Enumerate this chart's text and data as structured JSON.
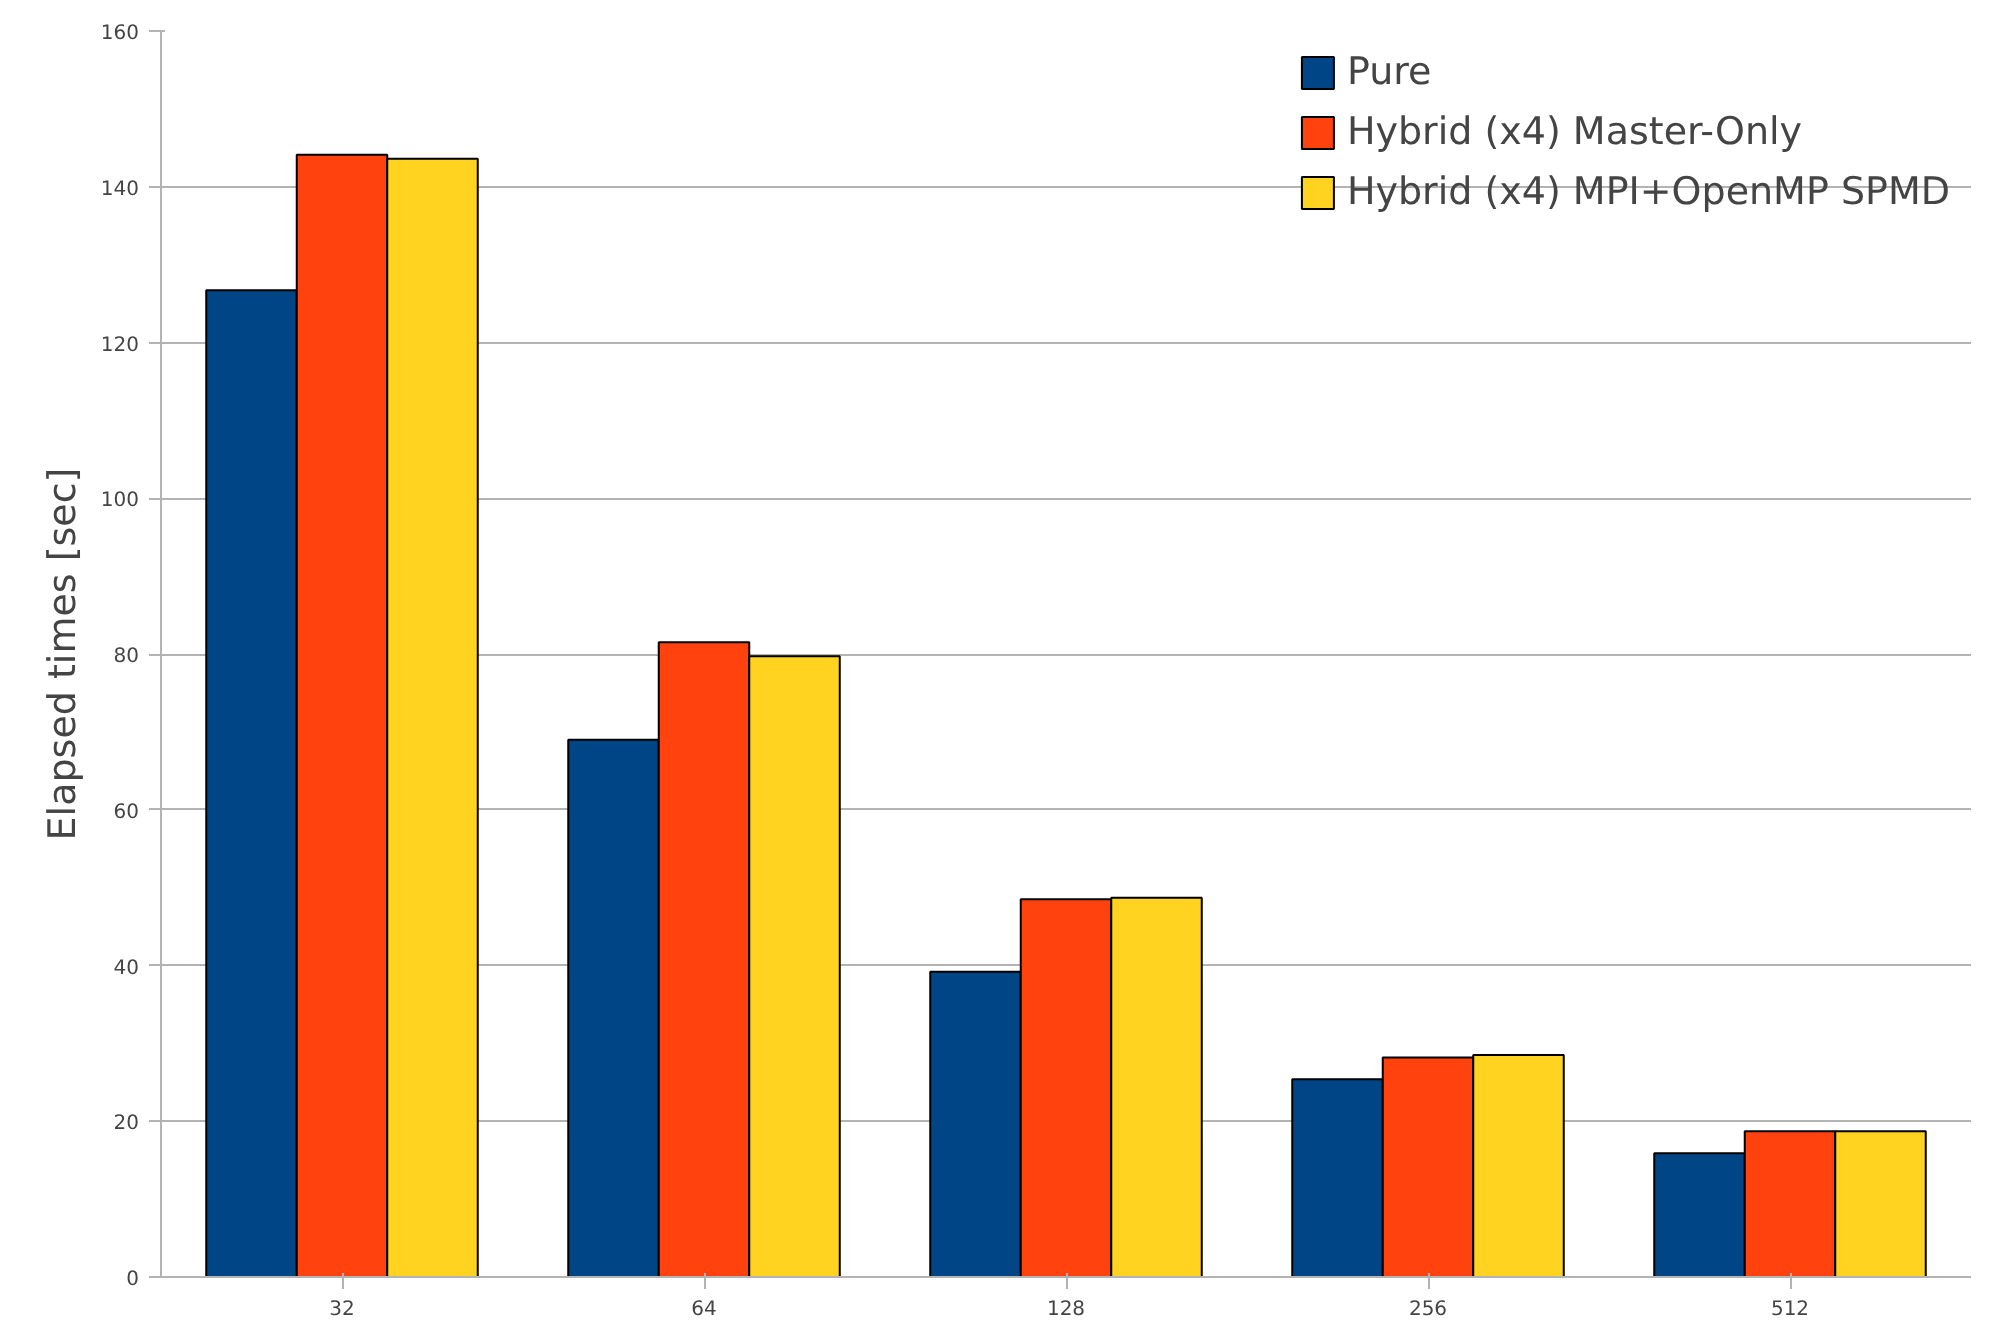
{
  "chart_data": {
    "type": "bar",
    "ylabel": "Elapsed times [sec]",
    "categories": [
      "32",
      "64",
      "128",
      "256",
      "512"
    ],
    "series": [
      {
        "name": "Pure",
        "color": "#004586",
        "values": [
          126.7,
          69.0,
          39.2,
          25.4,
          15.9
        ]
      },
      {
        "name": "Hybrid (x4) Master-Only",
        "color": "#ff420e",
        "values": [
          144.1,
          81.5,
          48.5,
          28.2,
          18.7
        ]
      },
      {
        "name": "Hybrid (x4) MPI+OpenMP SPMD",
        "color": "#ffd320",
        "values": [
          143.6,
          79.7,
          48.7,
          28.5,
          18.7
        ]
      }
    ],
    "ylim": [
      0,
      160
    ],
    "yticks": [
      0,
      20,
      40,
      60,
      80,
      100,
      120,
      140,
      160
    ],
    "grid": "y",
    "legend": "top right"
  }
}
